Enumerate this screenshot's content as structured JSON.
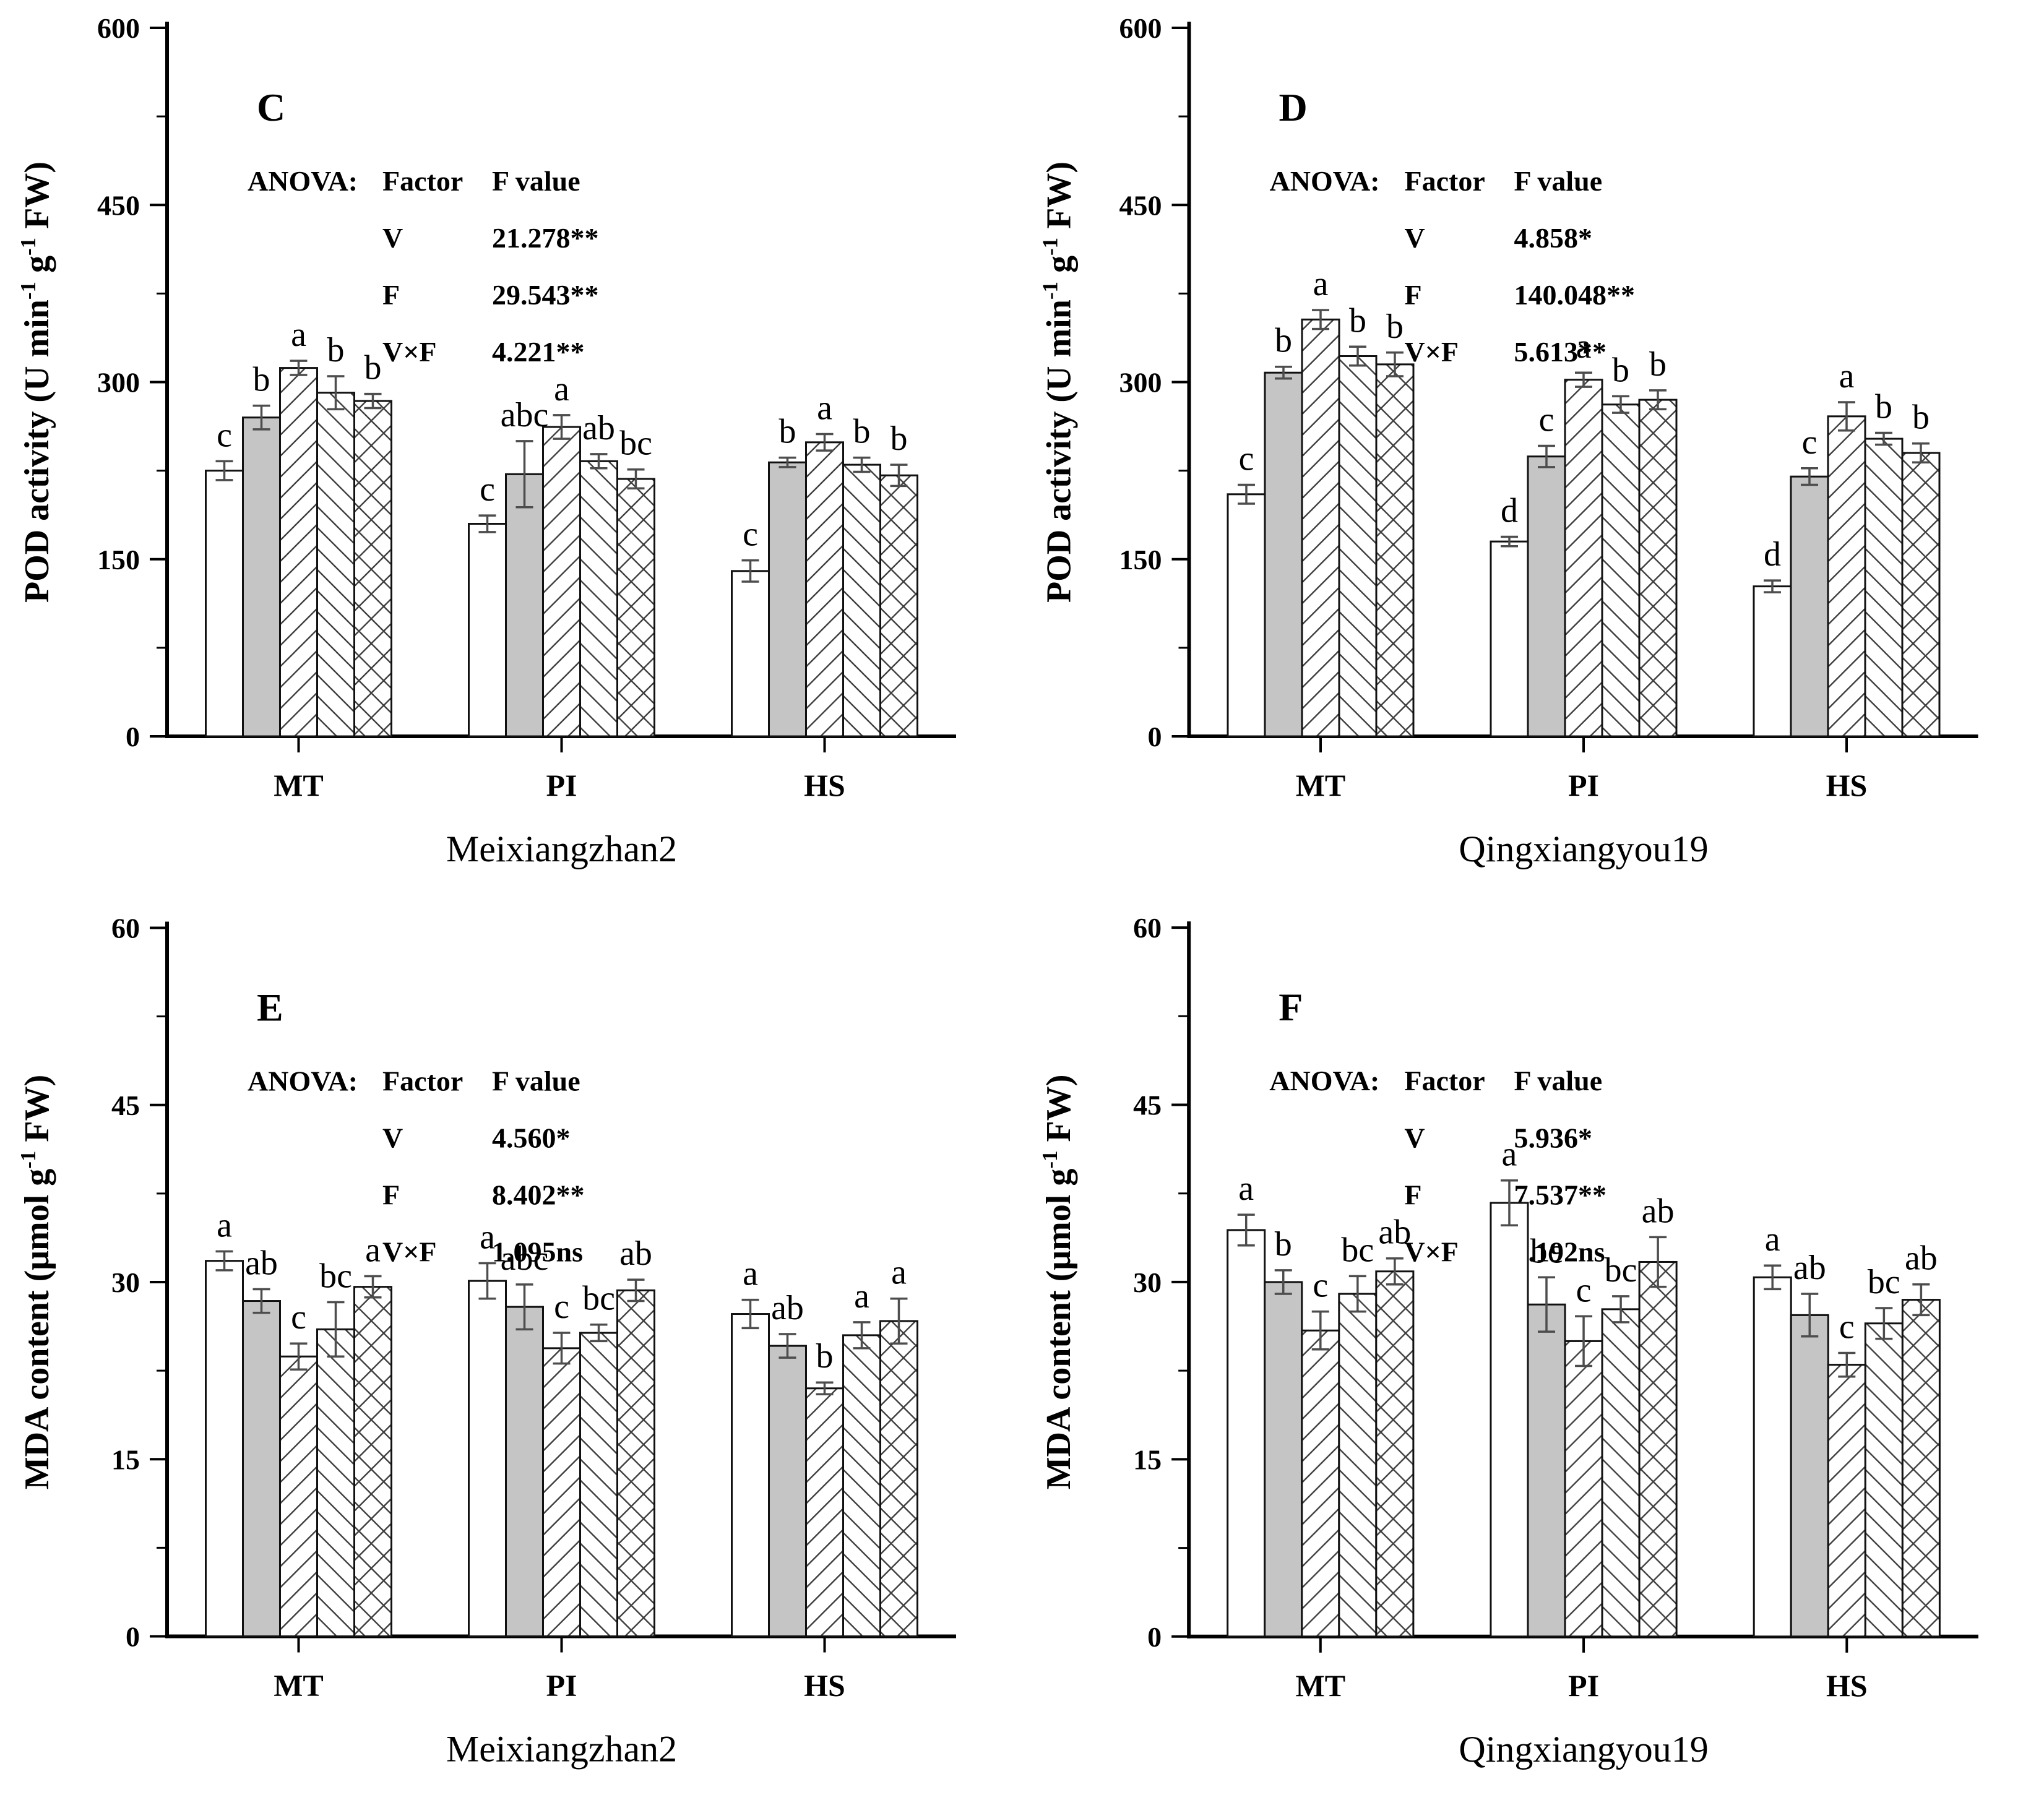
{
  "figure": {
    "description_visible_panels": [
      "C",
      "D",
      "E",
      "F"
    ],
    "bar_pattern_styles": [
      "white",
      "gray",
      "diagonal-up",
      "diagonal-down",
      "crosshatch"
    ],
    "colors": {
      "background": "#ffffff",
      "bar_gray_fill": "#c5c5c5",
      "ink": "#000000",
      "hatch_line": "#3f3f3f",
      "error_bar": "#4d4d4d"
    }
  },
  "chart_data": [
    {
      "type": "bar",
      "panel_label": "C",
      "ylabel_segments": [
        {
          "t": "POD activity (U min"
        },
        {
          "t": "-1",
          "sup": true
        },
        {
          "t": " g"
        },
        {
          "t": "-1",
          "sup": true
        },
        {
          "t": " FW)"
        }
      ],
      "ylim": [
        0,
        600
      ],
      "yticks": [
        0,
        150,
        300,
        450,
        600
      ],
      "minor_ticks": [
        75,
        225,
        375,
        525
      ],
      "categories": [
        "MT",
        "PI",
        "HS"
      ],
      "caption": "Meixiangzhan2",
      "grid": false,
      "legend": "none",
      "anova": {
        "label": "ANOVA:",
        "factor_header": "Factor",
        "fvalue_header": "F value",
        "rows": [
          {
            "factor": "V",
            "f": "21.278**"
          },
          {
            "factor": "F",
            "f": "29.543**"
          },
          {
            "factor": "V×F",
            "f": "4.221**"
          }
        ]
      },
      "series": [
        {
          "pattern": "white",
          "values": [
            225,
            180,
            140
          ],
          "errors": [
            8,
            7,
            9
          ],
          "letters": [
            "c",
            "c",
            "c"
          ]
        },
        {
          "pattern": "gray",
          "values": [
            270,
            222,
            232
          ],
          "errors": [
            10,
            28,
            4
          ],
          "letters": [
            "b",
            "abc",
            "b"
          ]
        },
        {
          "pattern": "diagonal-up",
          "values": [
            312,
            262,
            249
          ],
          "errors": [
            6,
            10,
            7
          ],
          "letters": [
            "a",
            "a",
            "a"
          ]
        },
        {
          "pattern": "diagonal-down",
          "values": [
            291,
            233,
            230
          ],
          "errors": [
            14,
            6,
            6
          ],
          "letters": [
            "b",
            "ab",
            "b"
          ]
        },
        {
          "pattern": "crosshatch",
          "values": [
            284,
            218,
            221
          ],
          "errors": [
            6,
            8,
            9
          ],
          "letters": [
            "b",
            "bc",
            "b"
          ]
        }
      ]
    },
    {
      "type": "bar",
      "panel_label": "D",
      "ylabel_segments": [
        {
          "t": "POD activity (U min"
        },
        {
          "t": "-1",
          "sup": true
        },
        {
          "t": " g"
        },
        {
          "t": "-1",
          "sup": true
        },
        {
          "t": " FW)"
        }
      ],
      "ylim": [
        0,
        600
      ],
      "yticks": [
        0,
        150,
        300,
        450,
        600
      ],
      "minor_ticks": [
        75,
        225,
        375,
        525
      ],
      "categories": [
        "MT",
        "PI",
        "HS"
      ],
      "caption": "Qingxiangyou19",
      "grid": false,
      "legend": "none",
      "anova": {
        "label": "ANOVA:",
        "factor_header": "Factor",
        "fvalue_header": "F value",
        "rows": [
          {
            "factor": "V",
            "f": "4.858*"
          },
          {
            "factor": "F",
            "f": "140.048**"
          },
          {
            "factor": "V×F",
            "f": "5.613**"
          }
        ]
      },
      "series": [
        {
          "pattern": "white",
          "values": [
            205,
            165,
            127
          ],
          "errors": [
            8,
            4,
            5
          ],
          "letters": [
            "c",
            "d",
            "d"
          ]
        },
        {
          "pattern": "gray",
          "values": [
            308,
            237,
            220
          ],
          "errors": [
            5,
            9,
            7
          ],
          "letters": [
            "b",
            "c",
            "c"
          ]
        },
        {
          "pattern": "diagonal-up",
          "values": [
            353,
            302,
            271
          ],
          "errors": [
            8,
            6,
            12
          ],
          "letters": [
            "a",
            "a",
            "a"
          ]
        },
        {
          "pattern": "diagonal-down",
          "values": [
            322,
            281,
            252
          ],
          "errors": [
            8,
            7,
            5
          ],
          "letters": [
            "b",
            "b",
            "b"
          ]
        },
        {
          "pattern": "crosshatch",
          "values": [
            315,
            285,
            240
          ],
          "errors": [
            10,
            8,
            8
          ],
          "letters": [
            "b",
            "b",
            "b"
          ]
        }
      ]
    },
    {
      "type": "bar",
      "panel_label": "E",
      "ylabel_segments": [
        {
          "t": "MDA content (μmol g"
        },
        {
          "t": "-1",
          "sup": true
        },
        {
          "t": " FW)"
        }
      ],
      "ylim": [
        0,
        60
      ],
      "yticks": [
        0,
        15,
        30,
        45,
        60
      ],
      "minor_ticks": [
        7.5,
        22.5,
        37.5,
        52.5
      ],
      "categories": [
        "MT",
        "PI",
        "HS"
      ],
      "caption": "Meixiangzhan2",
      "grid": false,
      "legend": "none",
      "anova": {
        "label": "ANOVA:",
        "factor_header": "Factor",
        "fvalue_header": "F value",
        "rows": [
          {
            "factor": "V",
            "f": "4.560*"
          },
          {
            "factor": "F",
            "f": "8.402**"
          },
          {
            "factor": "V×F",
            "f": "1.095ns"
          }
        ]
      },
      "series": [
        {
          "pattern": "white",
          "values": [
            31.8,
            30.1,
            27.3
          ],
          "errors": [
            0.8,
            1.5,
            1.2
          ],
          "letters": [
            "a",
            "a",
            "a"
          ]
        },
        {
          "pattern": "gray",
          "values": [
            28.4,
            27.9,
            24.6
          ],
          "errors": [
            1.0,
            1.9,
            1.0
          ],
          "letters": [
            "ab",
            "abc",
            "ab"
          ]
        },
        {
          "pattern": "diagonal-up",
          "values": [
            23.7,
            24.4,
            21.0
          ],
          "errors": [
            1.1,
            1.3,
            0.5
          ],
          "letters": [
            "c",
            "c",
            "b"
          ]
        },
        {
          "pattern": "diagonal-down",
          "values": [
            26.0,
            25.7,
            25.5
          ],
          "errors": [
            2.3,
            0.7,
            1.1
          ],
          "letters": [
            "bc",
            "bc",
            "a"
          ]
        },
        {
          "pattern": "crosshatch",
          "values": [
            29.6,
            29.3,
            26.7
          ],
          "errors": [
            0.9,
            0.9,
            1.9
          ],
          "letters": [
            "a",
            "ab",
            "a"
          ]
        }
      ]
    },
    {
      "type": "bar",
      "panel_label": "F",
      "ylabel_segments": [
        {
          "t": "MDA content (μmol g"
        },
        {
          "t": "-1",
          "sup": true
        },
        {
          "t": " FW)"
        }
      ],
      "ylim": [
        0,
        60
      ],
      "yticks": [
        0,
        15,
        30,
        45,
        60
      ],
      "minor_ticks": [
        7.5,
        22.5,
        37.5,
        52.5
      ],
      "categories": [
        "MT",
        "PI",
        "HS"
      ],
      "caption": "Qingxiangyou19",
      "grid": false,
      "legend": "none",
      "anova": {
        "label": "ANOVA:",
        "factor_header": "Factor",
        "fvalue_header": "F value",
        "rows": [
          {
            "factor": "V",
            "f": "5.936*"
          },
          {
            "factor": "F",
            "f": "7.537**"
          },
          {
            "factor": "V×F",
            "f": "0.192ns"
          }
        ]
      },
      "series": [
        {
          "pattern": "white",
          "values": [
            34.4,
            36.7,
            30.4
          ],
          "errors": [
            1.3,
            1.9,
            1.0
          ],
          "letters": [
            "a",
            "a",
            "a"
          ]
        },
        {
          "pattern": "gray",
          "values": [
            30.0,
            28.1,
            27.2
          ],
          "errors": [
            1.0,
            2.3,
            1.8
          ],
          "letters": [
            "b",
            "bc",
            "ab"
          ]
        },
        {
          "pattern": "diagonal-up",
          "values": [
            25.9,
            25.0,
            23.0
          ],
          "errors": [
            1.6,
            2.1,
            1.0
          ],
          "letters": [
            "c",
            "c",
            "c"
          ]
        },
        {
          "pattern": "diagonal-down",
          "values": [
            29.0,
            27.7,
            26.5
          ],
          "errors": [
            1.5,
            1.1,
            1.3
          ],
          "letters": [
            "bc",
            "bc",
            "bc"
          ]
        },
        {
          "pattern": "crosshatch",
          "values": [
            30.9,
            31.7,
            28.5
          ],
          "errors": [
            1.1,
            2.1,
            1.3
          ],
          "letters": [
            "ab",
            "ab",
            "ab"
          ]
        }
      ]
    }
  ]
}
